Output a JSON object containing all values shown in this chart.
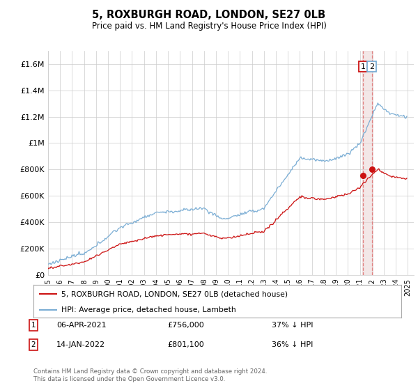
{
  "title": "5, ROXBURGH ROAD, LONDON, SE27 0LB",
  "subtitle": "Price paid vs. HM Land Registry's House Price Index (HPI)",
  "ylabel_ticks": [
    "£0",
    "£200K",
    "£400K",
    "£600K",
    "£800K",
    "£1M",
    "£1.2M",
    "£1.4M",
    "£1.6M"
  ],
  "ytick_values": [
    0,
    200000,
    400000,
    600000,
    800000,
    1000000,
    1200000,
    1400000,
    1600000
  ],
  "ylim": [
    0,
    1700000
  ],
  "xlim_start": 1995,
  "xlim_end": 2025.5,
  "hpi_color": "#7aadd4",
  "price_color": "#cc1111",
  "marker_color": "#cc1111",
  "vline_color": "#e08080",
  "vband_color": "#e8d0d0",
  "legend_line1": "5, ROXBURGH ROAD, LONDON, SE27 0LB (detached house)",
  "legend_line2": "HPI: Average price, detached house, Lambeth",
  "annotation1_date": "06-APR-2021",
  "annotation1_price": "£756,000",
  "annotation1_hpi": "37% ↓ HPI",
  "annotation2_date": "14-JAN-2022",
  "annotation2_price": "£801,100",
  "annotation2_hpi": "36% ↓ HPI",
  "footer": "Contains HM Land Registry data © Crown copyright and database right 2024.\nThis data is licensed under the Open Government Licence v3.0.",
  "background_color": "#ffffff",
  "grid_color": "#cccccc"
}
